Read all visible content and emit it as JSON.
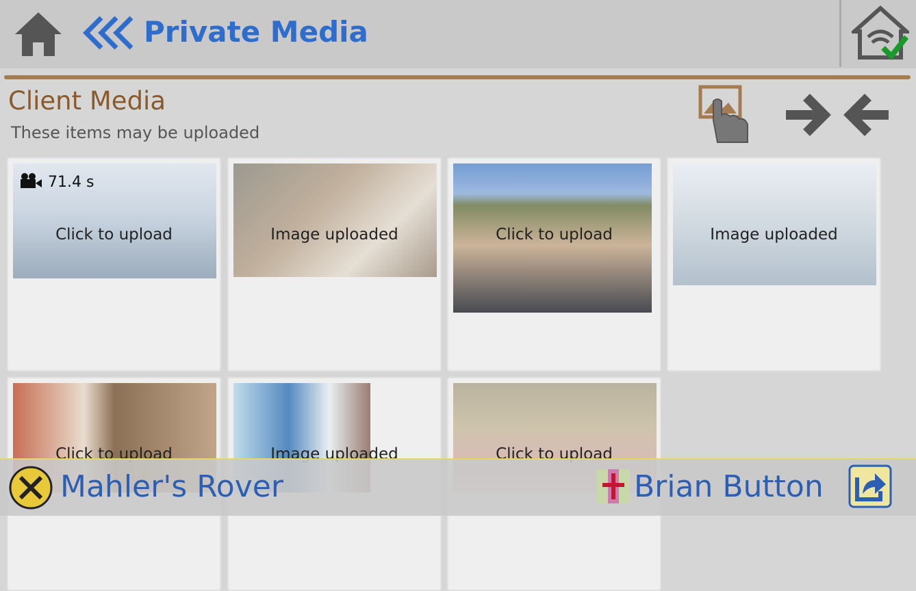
{
  "header": {
    "title": "Private Media"
  },
  "section": {
    "title": "Client Media",
    "subtitle": "These items may be uploaded"
  },
  "tiles": [
    {
      "status": "Click to upload",
      "duration": "71.4 s"
    },
    {
      "status": "Image uploaded"
    },
    {
      "status": "Click to upload"
    },
    {
      "status": "Image uploaded"
    },
    {
      "status": "Click to upload"
    },
    {
      "status": "Image uploaded"
    },
    {
      "status": "Click to upload"
    }
  ],
  "footer": {
    "vehicle": "Mahler's Rover",
    "user": "Brian Button"
  }
}
